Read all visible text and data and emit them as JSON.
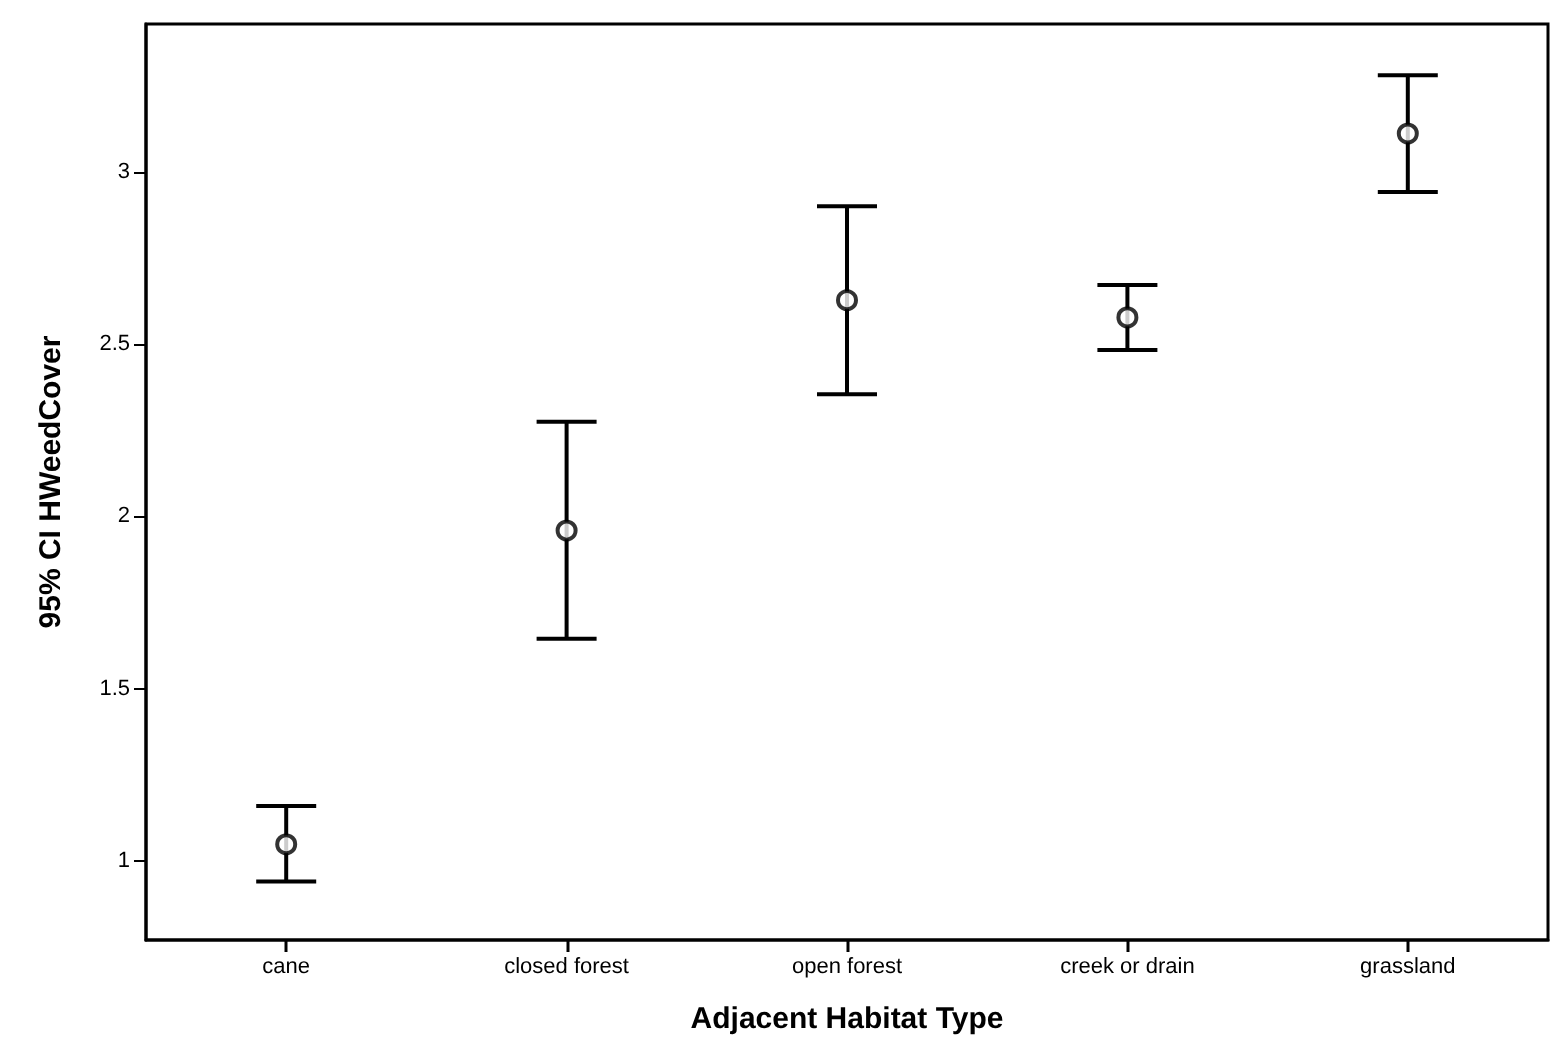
{
  "chart_data": {
    "type": "scatter",
    "xlabel": "Adjacent Habitat Type",
    "ylabel": "95% CI HWeedCover",
    "categories": [
      "cane",
      "closed forest",
      "open forest",
      "creek or drain",
      "grassland"
    ],
    "values": [
      1.048,
      1.959,
      2.628,
      2.578,
      3.112
    ],
    "errors": [
      [
        0.94,
        1.159
      ],
      [
        1.645,
        2.275
      ],
      [
        2.355,
        2.901
      ],
      [
        2.483,
        2.672
      ],
      [
        2.942,
        3.281
      ]
    ],
    "color": "#000000",
    "marker": "circle",
    "ylim": [
      0.77,
      3.43
    ],
    "yticks": [
      1,
      1.5,
      2,
      2.5,
      3
    ]
  }
}
